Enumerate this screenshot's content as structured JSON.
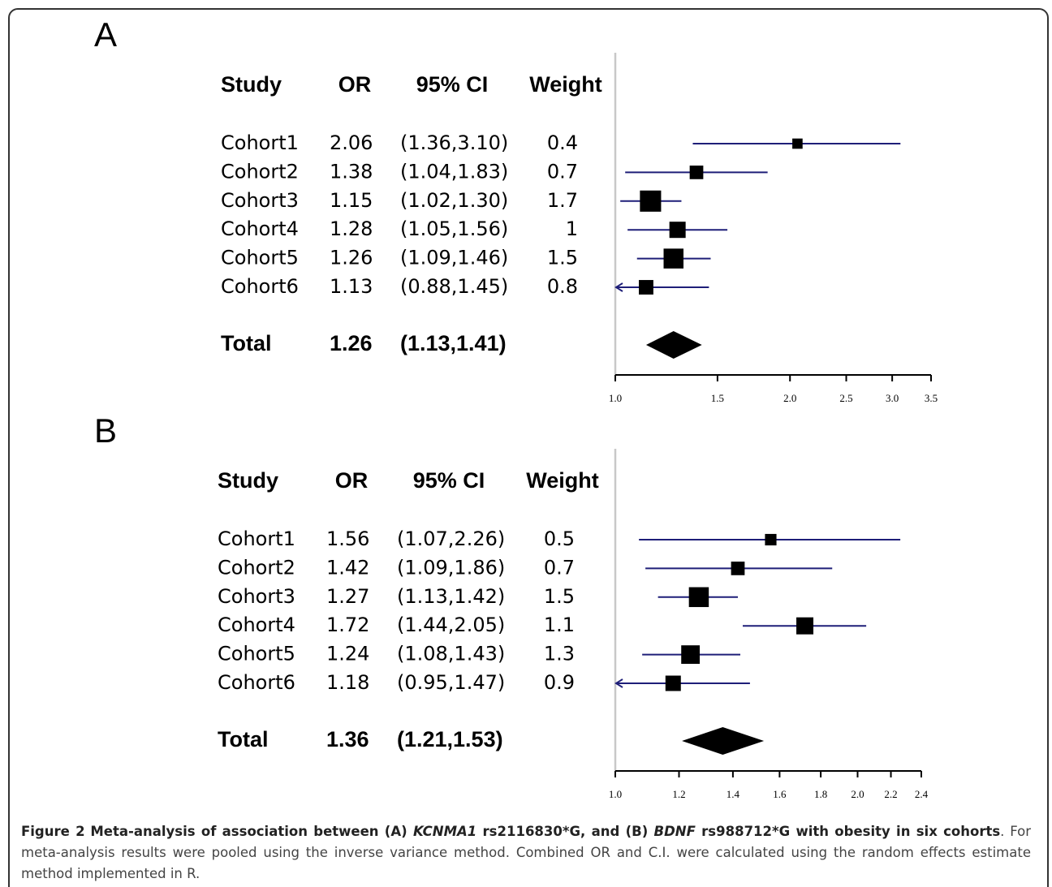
{
  "panels": [
    {
      "chart_data": {
        "type": "forest",
        "label": "A",
        "columns": [
          "Study",
          "OR",
          "95% CI",
          "Weight"
        ],
        "rows": [
          {
            "study": "Cohort1",
            "or": 2.06,
            "ci": "(1.36,3.10)",
            "lower": 1.36,
            "upper": 3.1,
            "weight": 0.4
          },
          {
            "study": "Cohort2",
            "or": 1.38,
            "ci": "(1.04,1.83)",
            "lower": 1.04,
            "upper": 1.83,
            "weight": 0.7
          },
          {
            "study": "Cohort3",
            "or": 1.15,
            "ci": "(1.02,1.30)",
            "lower": 1.02,
            "upper": 1.3,
            "weight": 1.7
          },
          {
            "study": "Cohort4",
            "or": 1.28,
            "ci": "(1.05,1.56)",
            "lower": 1.05,
            "upper": 1.56,
            "weight": 1
          },
          {
            "study": "Cohort5",
            "or": 1.26,
            "ci": "(1.09,1.46)",
            "lower": 1.09,
            "upper": 1.46,
            "weight": 1.5
          },
          {
            "study": "Cohort6",
            "or": 1.13,
            "ci": "(0.88,1.45)",
            "lower": 0.88,
            "upper": 1.45,
            "weight": 0.8
          }
        ],
        "total": {
          "study": "Total",
          "or": 1.26,
          "ci": "(1.13,1.41)",
          "lower": 1.13,
          "upper": 1.41
        },
        "xlim": [
          1.0,
          3.5
        ],
        "log_scale": true,
        "xticks": [
          {
            "value": 1.0,
            "label": "1.0"
          },
          1.5,
          {
            "value": 2.0,
            "label": "2.0"
          },
          2.5,
          {
            "value": 3.0,
            "label": "3.0"
          },
          3.5
        ],
        "color": "#1e1e78"
      }
    },
    {
      "chart_data": {
        "type": "forest",
        "label": "B",
        "columns": [
          "Study",
          "OR",
          "95% CI",
          "Weight"
        ],
        "rows": [
          {
            "study": "Cohort1",
            "or": 1.56,
            "ci": "(1.07,2.26)",
            "lower": 1.07,
            "upper": 2.26,
            "weight": 0.5
          },
          {
            "study": "Cohort2",
            "or": 1.42,
            "ci": "(1.09,1.86)",
            "lower": 1.09,
            "upper": 1.86,
            "weight": 0.7
          },
          {
            "study": "Cohort3",
            "or": 1.27,
            "ci": "(1.13,1.42)",
            "lower": 1.13,
            "upper": 1.42,
            "weight": 1.5
          },
          {
            "study": "Cohort4",
            "or": 1.72,
            "ci": "(1.44,2.05)",
            "lower": 1.44,
            "upper": 2.05,
            "weight": 1.1
          },
          {
            "study": "Cohort5",
            "or": 1.24,
            "ci": "(1.08,1.43)",
            "lower": 1.08,
            "upper": 1.43,
            "weight": 1.3
          },
          {
            "study": "Cohort6",
            "or": 1.18,
            "ci": "(0.95,1.47)",
            "lower": 0.95,
            "upper": 1.47,
            "weight": 0.9
          }
        ],
        "total": {
          "study": "Total",
          "or": 1.36,
          "ci": "(1.21,1.53)",
          "lower": 1.21,
          "upper": 1.53
        },
        "xlim": [
          1.0,
          2.4
        ],
        "log_scale": true,
        "xticks": [
          {
            "value": 1.0,
            "label": "1.0"
          },
          1.2,
          1.4,
          1.6,
          1.8,
          {
            "value": 2.0,
            "label": "2.0"
          },
          2.2,
          2.4
        ],
        "color": "#1e1e78"
      }
    }
  ],
  "caption": {
    "figure": "Figure 2",
    "title": [
      {
        "text": "Meta-analysis of association between (A) "
      },
      {
        "text": "KCNMA1",
        "italic": true
      },
      {
        "text": " rs2116830*G, and (B) "
      },
      {
        "text": "BDNF",
        "italic": true
      },
      {
        "text": " rs988712*G with obesity in six cohorts"
      }
    ],
    "body": ". For meta-analysis results were pooled using the inverse variance method. Combined OR and C.I. were calculated using the random effects estimate method implemented in R."
  }
}
